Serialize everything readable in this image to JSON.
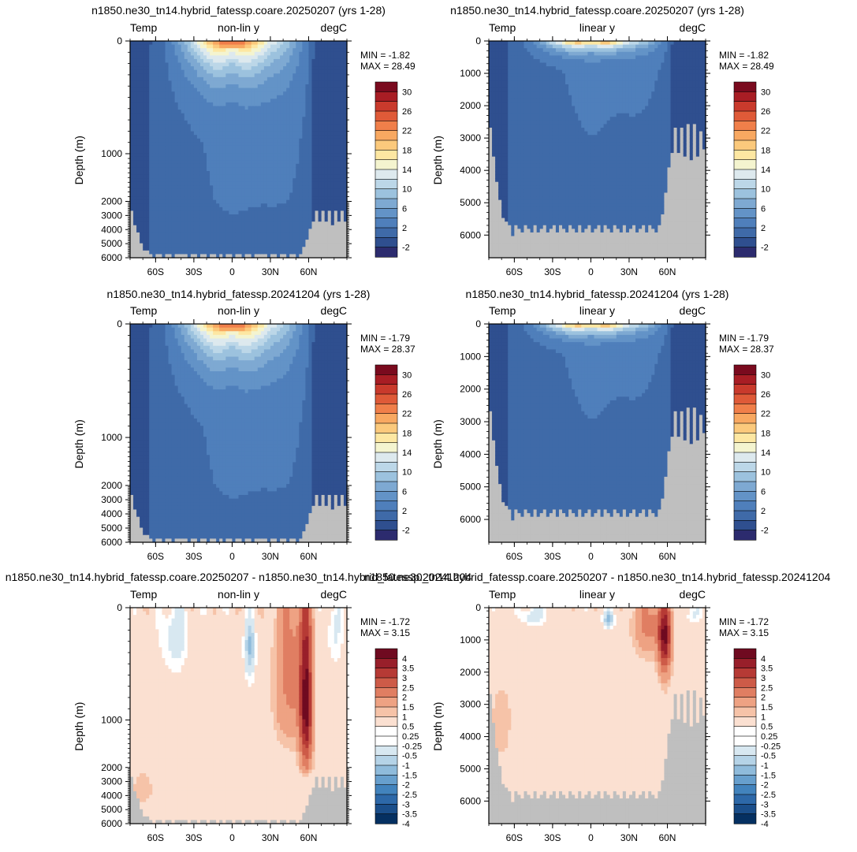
{
  "chart_data": [
    {
      "type": "heatmap",
      "title": "n1850.ne30_tn14.hybrid_fatessp.coare.20250207 (yrs 1-28)",
      "left_label": "Temp",
      "center_label": "non-lin y",
      "right_label": "degC",
      "ylabel": "Depth (m)",
      "y_scale": "non-linear",
      "y_ticks": [
        "0",
        "1000",
        "2000",
        "3000",
        "4000",
        "5000",
        "6000"
      ],
      "x_ticks": [
        "60S",
        "30S",
        "0",
        "30N",
        "60N"
      ],
      "min_label": "MIN = -1.82",
      "max_label": "MAX = 28.49",
      "colorbar": [
        "30",
        "26",
        "22",
        "18",
        "14",
        "10",
        "6",
        "2",
        "-2"
      ],
      "field": "temp",
      "min": -1.82,
      "max": 28.49
    },
    {
      "type": "heatmap",
      "title": "n1850.ne30_tn14.hybrid_fatessp.coare.20250207 (yrs 1-28)",
      "left_label": "Temp",
      "center_label": "linear y",
      "right_label": "degC",
      "ylabel": "Depth (m)",
      "y_scale": "linear",
      "y_ticks": [
        "0",
        "1000",
        "2000",
        "3000",
        "4000",
        "5000",
        "6000"
      ],
      "x_ticks": [
        "60S",
        "30S",
        "0",
        "30N",
        "60N"
      ],
      "min_label": "MIN = -1.82",
      "max_label": "MAX = 28.49",
      "colorbar": [
        "30",
        "26",
        "22",
        "18",
        "14",
        "10",
        "6",
        "2",
        "-2"
      ],
      "field": "temp",
      "min": -1.82,
      "max": 28.49
    },
    {
      "type": "heatmap",
      "title": "n1850.ne30_tn14.hybrid_fatessp.20241204 (yrs 1-28)",
      "left_label": "Temp",
      "center_label": "non-lin y",
      "right_label": "degC",
      "ylabel": "Depth (m)",
      "y_scale": "non-linear",
      "y_ticks": [
        "0",
        "1000",
        "2000",
        "3000",
        "4000",
        "5000",
        "6000"
      ],
      "x_ticks": [
        "60S",
        "30S",
        "0",
        "30N",
        "60N"
      ],
      "min_label": "MIN = -1.79",
      "max_label": "MAX = 28.37",
      "colorbar": [
        "30",
        "26",
        "22",
        "18",
        "14",
        "10",
        "6",
        "2",
        "-2"
      ],
      "field": "temp",
      "min": -1.79,
      "max": 28.37
    },
    {
      "type": "heatmap",
      "title": "n1850.ne30_tn14.hybrid_fatessp.20241204 (yrs 1-28)",
      "left_label": "Temp",
      "center_label": "linear y",
      "right_label": "degC",
      "ylabel": "Depth (m)",
      "y_scale": "linear",
      "y_ticks": [
        "0",
        "1000",
        "2000",
        "3000",
        "4000",
        "5000",
        "6000"
      ],
      "x_ticks": [
        "60S",
        "30S",
        "0",
        "30N",
        "60N"
      ],
      "min_label": "MIN = -1.79",
      "max_label": "MAX = 28.37",
      "colorbar": [
        "30",
        "26",
        "22",
        "18",
        "14",
        "10",
        "6",
        "2",
        "-2"
      ],
      "field": "temp",
      "min": -1.79,
      "max": 28.37
    },
    {
      "type": "heatmap",
      "title": "n1850.ne30_tn14.hybrid_fatessp.coare.20250207 - n1850.ne30_tn14.hybrid_fatessp.20241204",
      "left_label": "Temp",
      "center_label": "non-lin y",
      "right_label": "degC",
      "ylabel": "Depth (m)",
      "y_scale": "non-linear",
      "y_ticks": [
        "0",
        "1000",
        "2000",
        "3000",
        "4000",
        "5000",
        "6000"
      ],
      "x_ticks": [
        "60S",
        "30S",
        "0",
        "30N",
        "60N"
      ],
      "min_label": "MIN = -1.72",
      "max_label": "MAX = 3.15",
      "colorbar": [
        "4",
        "3.5",
        "3",
        "2.5",
        "2",
        "1.5",
        "1",
        "0.5",
        "0.25",
        "-0.25",
        "-0.5",
        "-1",
        "-1.5",
        "-2",
        "-2.5",
        "-3",
        "-3.5",
        "-4"
      ],
      "field": "diff",
      "min": -1.72,
      "max": 3.15
    },
    {
      "type": "heatmap",
      "title": "n1850.ne30_tn14.hybrid_fatessp.coare.20250207 - n1850.ne30_tn14.hybrid_fatessp.20241204",
      "left_label": "Temp",
      "center_label": "linear y",
      "right_label": "degC",
      "ylabel": "Depth (m)",
      "y_scale": "linear",
      "y_ticks": [
        "0",
        "1000",
        "2000",
        "3000",
        "4000",
        "5000",
        "6000"
      ],
      "x_ticks": [
        "60S",
        "30S",
        "0",
        "30N",
        "60N"
      ],
      "min_label": "MIN = -1.72",
      "max_label": "MAX = 3.15",
      "colorbar": [
        "4",
        "3.5",
        "3",
        "2.5",
        "2",
        "1.5",
        "1",
        "0.5",
        "0.25",
        "-0.25",
        "-0.5",
        "-1",
        "-1.5",
        "-2",
        "-2.5",
        "-3",
        "-3.5",
        "-4"
      ],
      "field": "diff",
      "min": -1.72,
      "max": 3.15
    }
  ],
  "colors": {
    "land": "#bfbfbf",
    "temp_scale": [
      "#2c2b6e",
      "#2f4f8f",
      "#3f6aa8",
      "#4f7fbb",
      "#6393c7",
      "#7ea9d2",
      "#9cc2de",
      "#bcd7e8",
      "#dde9ee",
      "#f4f4cf",
      "#fde7a2",
      "#fbc97c",
      "#f8a861",
      "#f07f4a",
      "#df5a38",
      "#c93a2c",
      "#a81d24",
      "#7a0a1e"
    ],
    "diff_scale": [
      "#053061",
      "#1a4e8a",
      "#2d68a8",
      "#4283bd",
      "#679fcd",
      "#8fbbdb",
      "#b5d3e7",
      "#d8e8f1",
      "#ffffff",
      "#fbe0d1",
      "#f6c3a8",
      "#eea283",
      "#e07e62",
      "#cd5b48",
      "#b63a35",
      "#981f2a",
      "#6f0a20"
    ]
  }
}
